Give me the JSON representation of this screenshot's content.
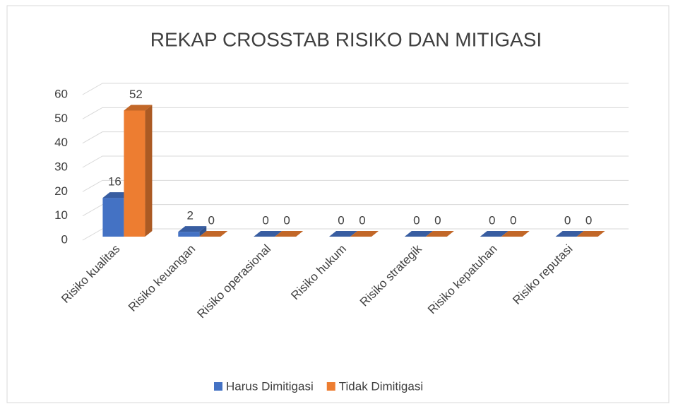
{
  "chart_data": {
    "type": "bar3d",
    "title": "REKAP CROSSTAB RISIKO DAN MITIGASI",
    "categories": [
      "Risiko kualitas",
      "Risiko keuangan",
      "Risiko operasional",
      "Risiko hukum",
      "Risiko strategik",
      "Risiko kepatuhan",
      "Risiko reputasi"
    ],
    "series": [
      {
        "name": "Harus Dimitigasi",
        "color": "#4472c4",
        "values": [
          16,
          2,
          0,
          0,
          0,
          0,
          0
        ]
      },
      {
        "name": "Tidak Dimitigasi",
        "color": "#ed7d31",
        "values": [
          52,
          0,
          0,
          0,
          0,
          0,
          0
        ]
      }
    ],
    "ylim": [
      0,
      60
    ],
    "yticks": [
      0,
      10,
      20,
      30,
      40,
      50,
      60
    ],
    "grid": true,
    "legend": "bottom"
  }
}
